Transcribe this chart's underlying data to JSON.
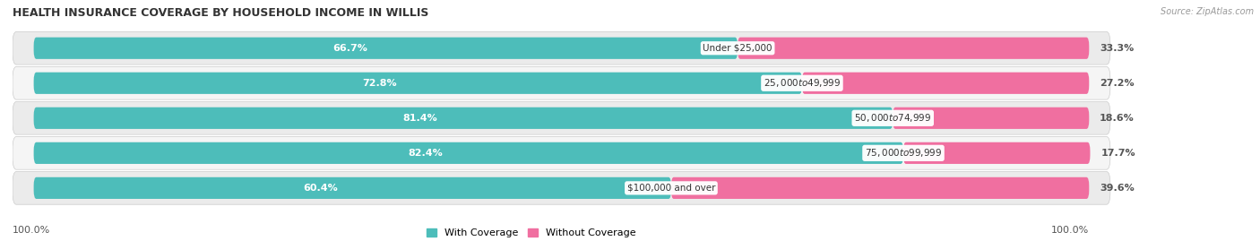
{
  "title": "HEALTH INSURANCE COVERAGE BY HOUSEHOLD INCOME IN WILLIS",
  "source": "Source: ZipAtlas.com",
  "categories": [
    "Under $25,000",
    "$25,000 to $49,999",
    "$50,000 to $74,999",
    "$75,000 to $99,999",
    "$100,000 and over"
  ],
  "with_coverage": [
    66.7,
    72.8,
    81.4,
    82.4,
    60.4
  ],
  "without_coverage": [
    33.3,
    27.2,
    18.6,
    17.7,
    39.6
  ],
  "color_with": "#4dbdba",
  "color_without": "#f06fa0",
  "color_with_light": "#a8dedd",
  "color_without_light": "#f9c0d8",
  "label_color_with": "#ffffff",
  "label_color_outside": "#555555",
  "category_label_color": "#333333",
  "row_bg_even": "#e8e8e8",
  "row_bg_odd": "#f0f0f0",
  "title_fontsize": 9,
  "bar_label_fontsize": 8,
  "cat_label_fontsize": 7.5,
  "axis_label_fontsize": 8,
  "legend_fontsize": 8,
  "bar_height": 0.62,
  "total_width": 100,
  "legend_label_with": "With Coverage",
  "legend_label_without": "Without Coverage"
}
